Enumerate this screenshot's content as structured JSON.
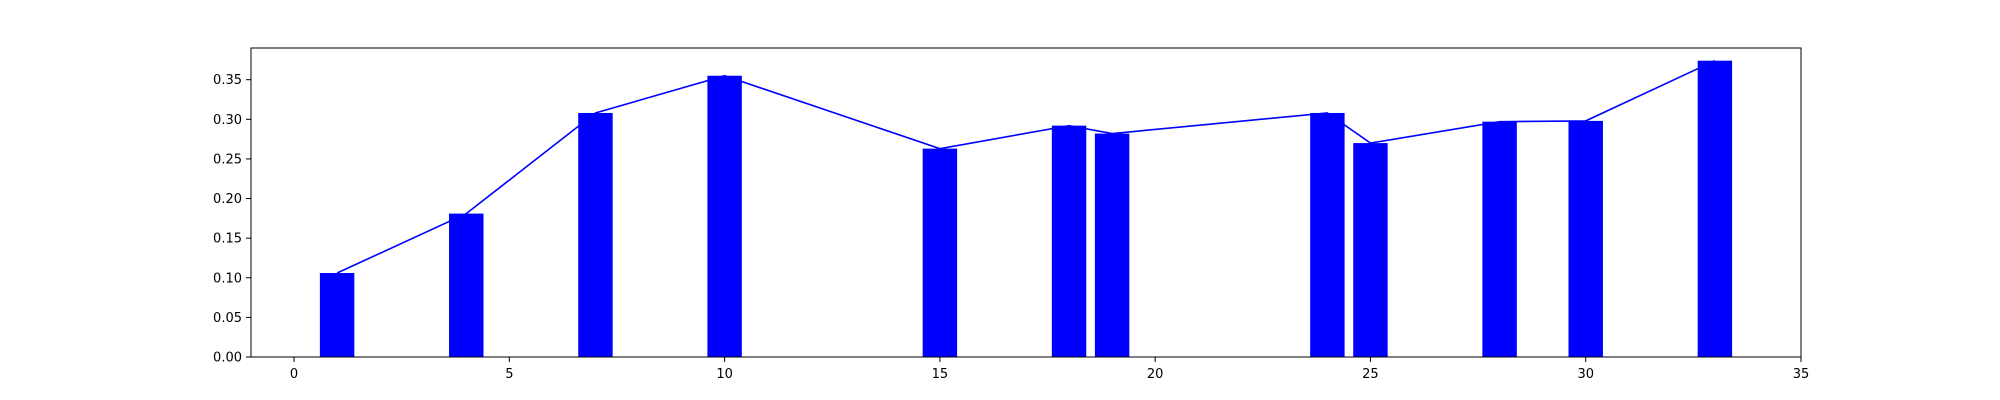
{
  "chart_data": {
    "type": "bar",
    "title": "",
    "xlabel": "",
    "ylabel": "",
    "xlim": [
      -1,
      35
    ],
    "ylim": [
      0,
      0.39
    ],
    "grid": false,
    "x": [
      1,
      4,
      7,
      10,
      15,
      18,
      19,
      24,
      25,
      28,
      30,
      33
    ],
    "series": [
      {
        "kind": "bar",
        "values": [
          0.106,
          0.181,
          0.308,
          0.355,
          0.263,
          0.292,
          0.282,
          0.308,
          0.27,
          0.297,
          0.298,
          0.374
        ],
        "color": "#0000ff"
      },
      {
        "kind": "line",
        "values": [
          0.106,
          0.181,
          0.308,
          0.355,
          0.263,
          0.292,
          0.282,
          0.308,
          0.27,
          0.297,
          0.298,
          0.374
        ],
        "color": "#0000ff"
      }
    ],
    "xticks": [
      0,
      5,
      10,
      15,
      20,
      25,
      30,
      35
    ],
    "xtick_labels": [
      "0",
      "5",
      "10",
      "15",
      "20",
      "25",
      "30",
      "35"
    ],
    "yticks": [
      0.0,
      0.05,
      0.1,
      0.15,
      0.2,
      0.25,
      0.3,
      0.35
    ],
    "ytick_labels": [
      "0.00",
      "0.05",
      "0.10",
      "0.15",
      "0.20",
      "0.25",
      "0.30",
      "0.35"
    ]
  }
}
